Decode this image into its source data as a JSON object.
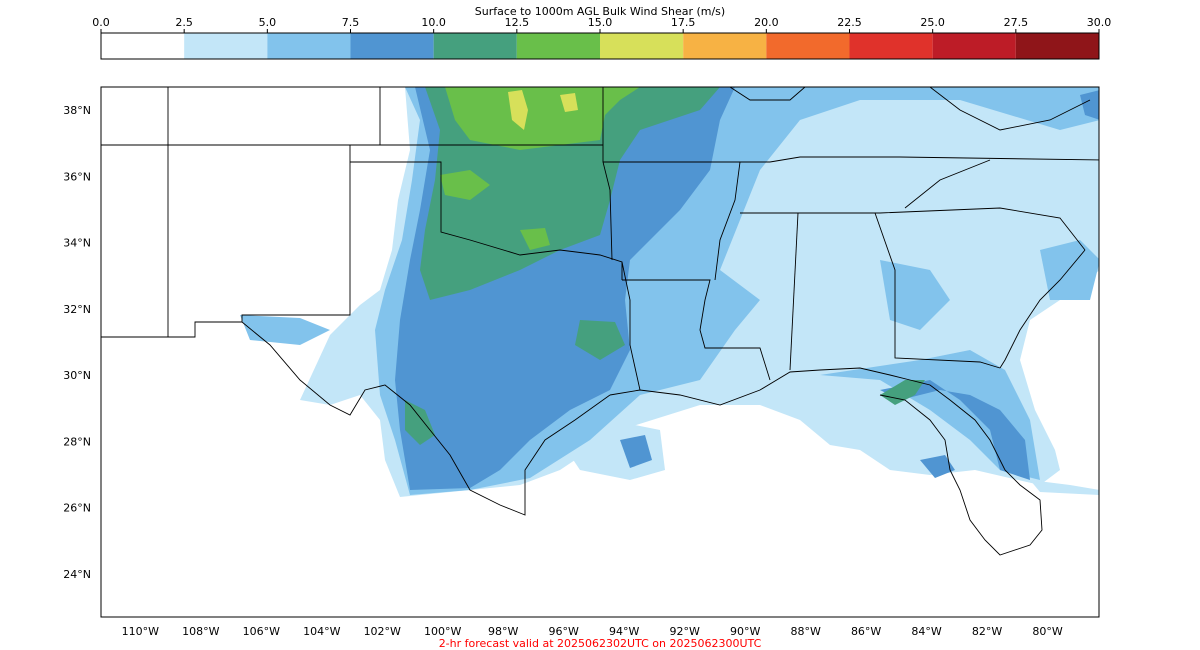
{
  "title": "Surface to 1000m AGL Bulk Wind Shear (m/s)",
  "footer": "2-hr forecast valid at 2025062302UTC on 2025062300UTC",
  "colors": {
    "footer": "#ff0000",
    "border": "#000000",
    "background": "#ffffff"
  },
  "colorbar": {
    "levels": [
      0.0,
      2.5,
      5.0,
      7.5,
      10.0,
      12.5,
      15.0,
      17.5,
      20.0,
      22.5,
      25.0,
      27.5,
      30.0
    ],
    "tick_labels": [
      "0.0",
      "2.5",
      "5.0",
      "7.5",
      "10.0",
      "12.5",
      "15.0",
      "17.5",
      "20.0",
      "22.5",
      "25.0",
      "27.5",
      "30.0"
    ],
    "colors": [
      "#ffffff",
      "#c3e6f8",
      "#82c3ec",
      "#5095d2",
      "#45a07e",
      "#69bf4a",
      "#d7e05a",
      "#f7b244",
      "#f26a2c",
      "#e0322b",
      "#bd1c27",
      "#8f1519"
    ]
  },
  "map": {
    "lon_range": [
      -111.3,
      -78.3
    ],
    "lat_range": [
      22.7,
      38.7
    ],
    "lat_ticks": [
      38,
      36,
      34,
      32,
      30,
      28,
      26,
      24
    ],
    "lat_labels": [
      "38°N",
      "36°N",
      "34°N",
      "32°N",
      "30°N",
      "28°N",
      "26°N",
      "24°N"
    ],
    "lon_ticks": [
      -110,
      -108,
      -106,
      -104,
      -102,
      -100,
      -98,
      -96,
      -94,
      -92,
      -90,
      -88,
      -86,
      -84,
      -82,
      -80
    ],
    "lon_labels": [
      "110°W",
      "108°W",
      "106°W",
      "104°W",
      "102°W",
      "100°W",
      "98°W",
      "96°W",
      "94°W",
      "92°W",
      "90°W",
      "88°W",
      "86°W",
      "84°W",
      "82°W",
      "80°W"
    ]
  }
}
